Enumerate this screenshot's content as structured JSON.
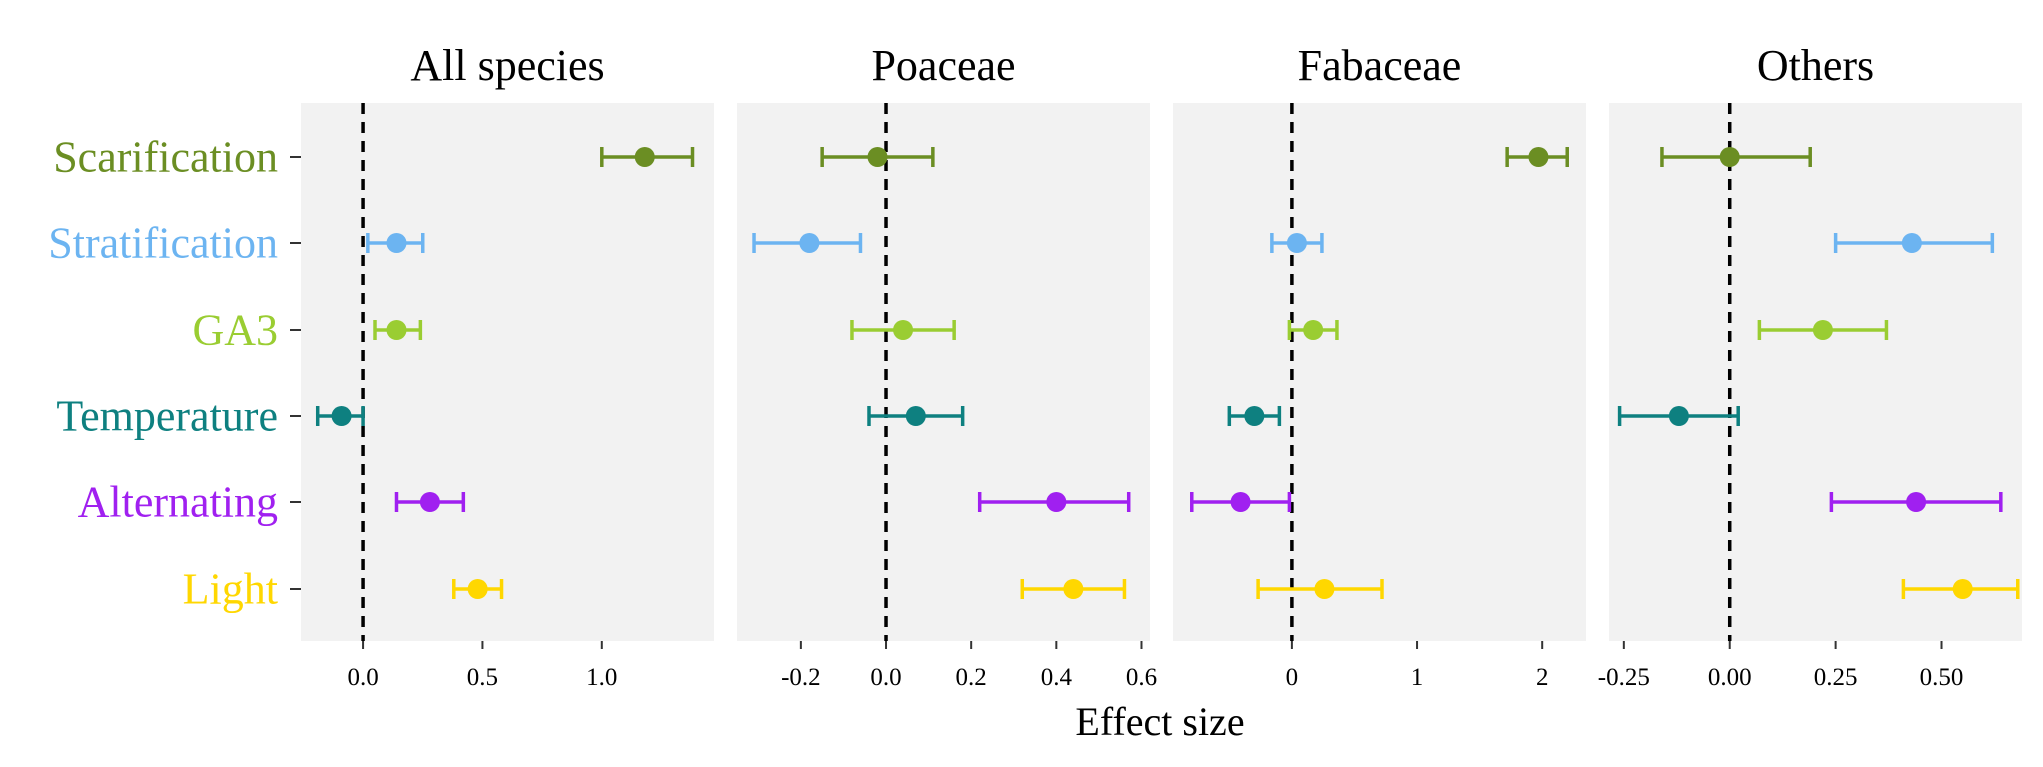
{
  "chart_data": {
    "type": "forest",
    "xlabel": "Effect size",
    "categories": [
      "Scarification",
      "Stratification",
      "GA3",
      "Temperature",
      "Alternating",
      "Light"
    ],
    "colors": {
      "Scarification": "#6B8E23",
      "Stratification": "#6CB4F1",
      "GA3": "#9ACD32",
      "Temperature": "#0E8080",
      "Alternating": "#A020F0",
      "Light": "#FFD700"
    },
    "reference_line": 0,
    "panels": [
      {
        "title": "All species",
        "xlim": [
          -0.26,
          1.47
        ],
        "ticks": [
          0.0,
          0.5,
          1.0
        ],
        "tick_labels": [
          "0.0",
          "0.5",
          "1.0"
        ],
        "points": [
          {
            "category": "Scarification",
            "estimate": 1.18,
            "lower": 1.0,
            "upper": 1.38
          },
          {
            "category": "Stratification",
            "estimate": 0.14,
            "lower": 0.02,
            "upper": 0.25
          },
          {
            "category": "GA3",
            "estimate": 0.14,
            "lower": 0.05,
            "upper": 0.24
          },
          {
            "category": "Temperature",
            "estimate": -0.09,
            "lower": -0.19,
            "upper": 0.0
          },
          {
            "category": "Alternating",
            "estimate": 0.28,
            "lower": 0.14,
            "upper": 0.42
          },
          {
            "category": "Light",
            "estimate": 0.48,
            "lower": 0.38,
            "upper": 0.58
          }
        ]
      },
      {
        "title": "Poaceae",
        "xlim": [
          -0.35,
          0.62
        ],
        "ticks": [
          -0.2,
          0.0,
          0.2,
          0.4,
          0.6
        ],
        "tick_labels": [
          "-0.2",
          "0.0",
          "0.2",
          "0.4",
          "0.6"
        ],
        "points": [
          {
            "category": "Scarification",
            "estimate": -0.02,
            "lower": -0.15,
            "upper": 0.11
          },
          {
            "category": "Stratification",
            "estimate": -0.18,
            "lower": -0.31,
            "upper": -0.06
          },
          {
            "category": "GA3",
            "estimate": 0.04,
            "lower": -0.08,
            "upper": 0.16
          },
          {
            "category": "Temperature",
            "estimate": 0.07,
            "lower": -0.04,
            "upper": 0.18
          },
          {
            "category": "Alternating",
            "estimate": 0.4,
            "lower": 0.22,
            "upper": 0.57
          },
          {
            "category": "Light",
            "estimate": 0.44,
            "lower": 0.32,
            "upper": 0.56
          }
        ]
      },
      {
        "title": "Fabaceae",
        "xlim": [
          -0.95,
          2.35
        ],
        "ticks": [
          0,
          1,
          2
        ],
        "tick_labels": [
          "0",
          "1",
          "2"
        ],
        "points": [
          {
            "category": "Scarification",
            "estimate": 1.97,
            "lower": 1.72,
            "upper": 2.2
          },
          {
            "category": "Stratification",
            "estimate": 0.04,
            "lower": -0.16,
            "upper": 0.24
          },
          {
            "category": "GA3",
            "estimate": 0.17,
            "lower": -0.02,
            "upper": 0.36
          },
          {
            "category": "Temperature",
            "estimate": -0.3,
            "lower": -0.5,
            "upper": -0.1
          },
          {
            "category": "Alternating",
            "estimate": -0.41,
            "lower": -0.8,
            "upper": -0.02
          },
          {
            "category": "Light",
            "estimate": 0.26,
            "lower": -0.27,
            "upper": 0.72
          }
        ]
      },
      {
        "title": "Others",
        "xlim": [
          -0.285,
          0.69
        ],
        "ticks": [
          -0.25,
          0.0,
          0.25,
          0.5
        ],
        "tick_labels": [
          "-0.25",
          "0.00",
          "0.25",
          "0.50"
        ],
        "points": [
          {
            "category": "Scarification",
            "estimate": 0.0,
            "lower": -0.16,
            "upper": 0.19
          },
          {
            "category": "Stratification",
            "estimate": 0.43,
            "lower": 0.25,
            "upper": 0.62
          },
          {
            "category": "GA3",
            "estimate": 0.22,
            "lower": 0.07,
            "upper": 0.37
          },
          {
            "category": "Temperature",
            "estimate": -0.12,
            "lower": -0.26,
            "upper": 0.02
          },
          {
            "category": "Alternating",
            "estimate": 0.44,
            "lower": 0.24,
            "upper": 0.64
          },
          {
            "category": "Light",
            "estimate": 0.55,
            "lower": 0.41,
            "upper": 0.68
          }
        ]
      }
    ]
  }
}
